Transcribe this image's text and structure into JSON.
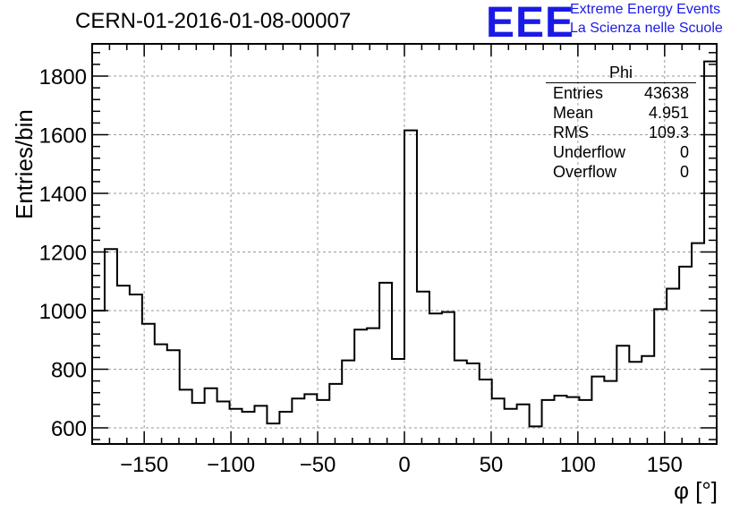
{
  "header": {
    "run_title": "CERN-01-2016-01-08-00007",
    "logo_text": "EEE",
    "logo_line1": "Extreme Energy Events",
    "logo_line2": "La Scienza nelle Scuole",
    "logo_color": "#1a1ae6"
  },
  "stats": {
    "title": "Phi",
    "rows": [
      {
        "label": "Entries",
        "value": "43638"
      },
      {
        "label": "Mean",
        "value": "4.951"
      },
      {
        "label": "RMS",
        "value": "109.3"
      },
      {
        "label": "Underflow",
        "value": "0"
      },
      {
        "label": "Overflow",
        "value": "0"
      }
    ]
  },
  "chart_data": {
    "type": "histogram",
    "title": "CERN-01-2016-01-08-00007",
    "xlabel": "φ [°]",
    "ylabel": "Entries/bin",
    "xlim": [
      -180,
      180
    ],
    "ylim": [
      545,
      1910
    ],
    "bin_width": 7.2,
    "x_ticks": [
      -150,
      -100,
      -50,
      0,
      50,
      100,
      150
    ],
    "x_tick_labels": [
      "−150",
      "−100",
      "−50",
      "0",
      "50",
      "100",
      "150"
    ],
    "y_ticks": [
      600,
      800,
      1000,
      1200,
      1400,
      1600,
      1800
    ],
    "y_tick_labels": [
      "600",
      "800",
      "1000",
      "1200",
      "1400",
      "1600",
      "1800"
    ],
    "grid": true,
    "line_color": "#000000",
    "values": [
      1000,
      1210,
      1085,
      1055,
      955,
      885,
      865,
      730,
      685,
      735,
      690,
      665,
      655,
      675,
      615,
      655,
      700,
      715,
      695,
      750,
      830,
      935,
      940,
      1095,
      835,
      1615,
      1065,
      990,
      995,
      830,
      820,
      765,
      700,
      665,
      680,
      605,
      695,
      710,
      705,
      695,
      775,
      760,
      880,
      825,
      845,
      1005,
      1075,
      1150,
      1230,
      1850
    ]
  }
}
